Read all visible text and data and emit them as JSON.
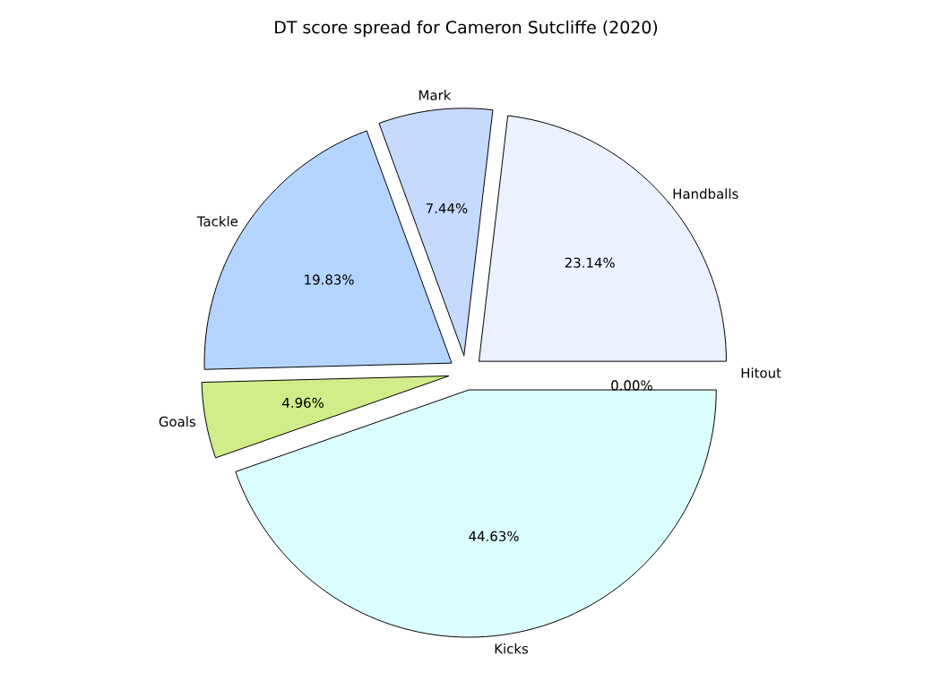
{
  "chart_data": {
    "type": "pie",
    "title": "DT score spread for Cameron Sutcliffe (2020)",
    "categories": [
      "Handballs",
      "Mark",
      "Tackle",
      "Goals",
      "Kicks",
      "Hitout"
    ],
    "values": [
      23.14,
      7.44,
      19.83,
      4.96,
      44.63,
      0.0
    ],
    "value_labels": [
      "23.14%",
      "7.44%",
      "19.83%",
      "4.96%",
      "44.63%",
      "0.00%"
    ],
    "colors": [
      "#ebf1ff",
      "#c6d9ff",
      "#b3d5ff",
      "#d0ed8a",
      "#dbffff",
      "#ffffff"
    ]
  }
}
